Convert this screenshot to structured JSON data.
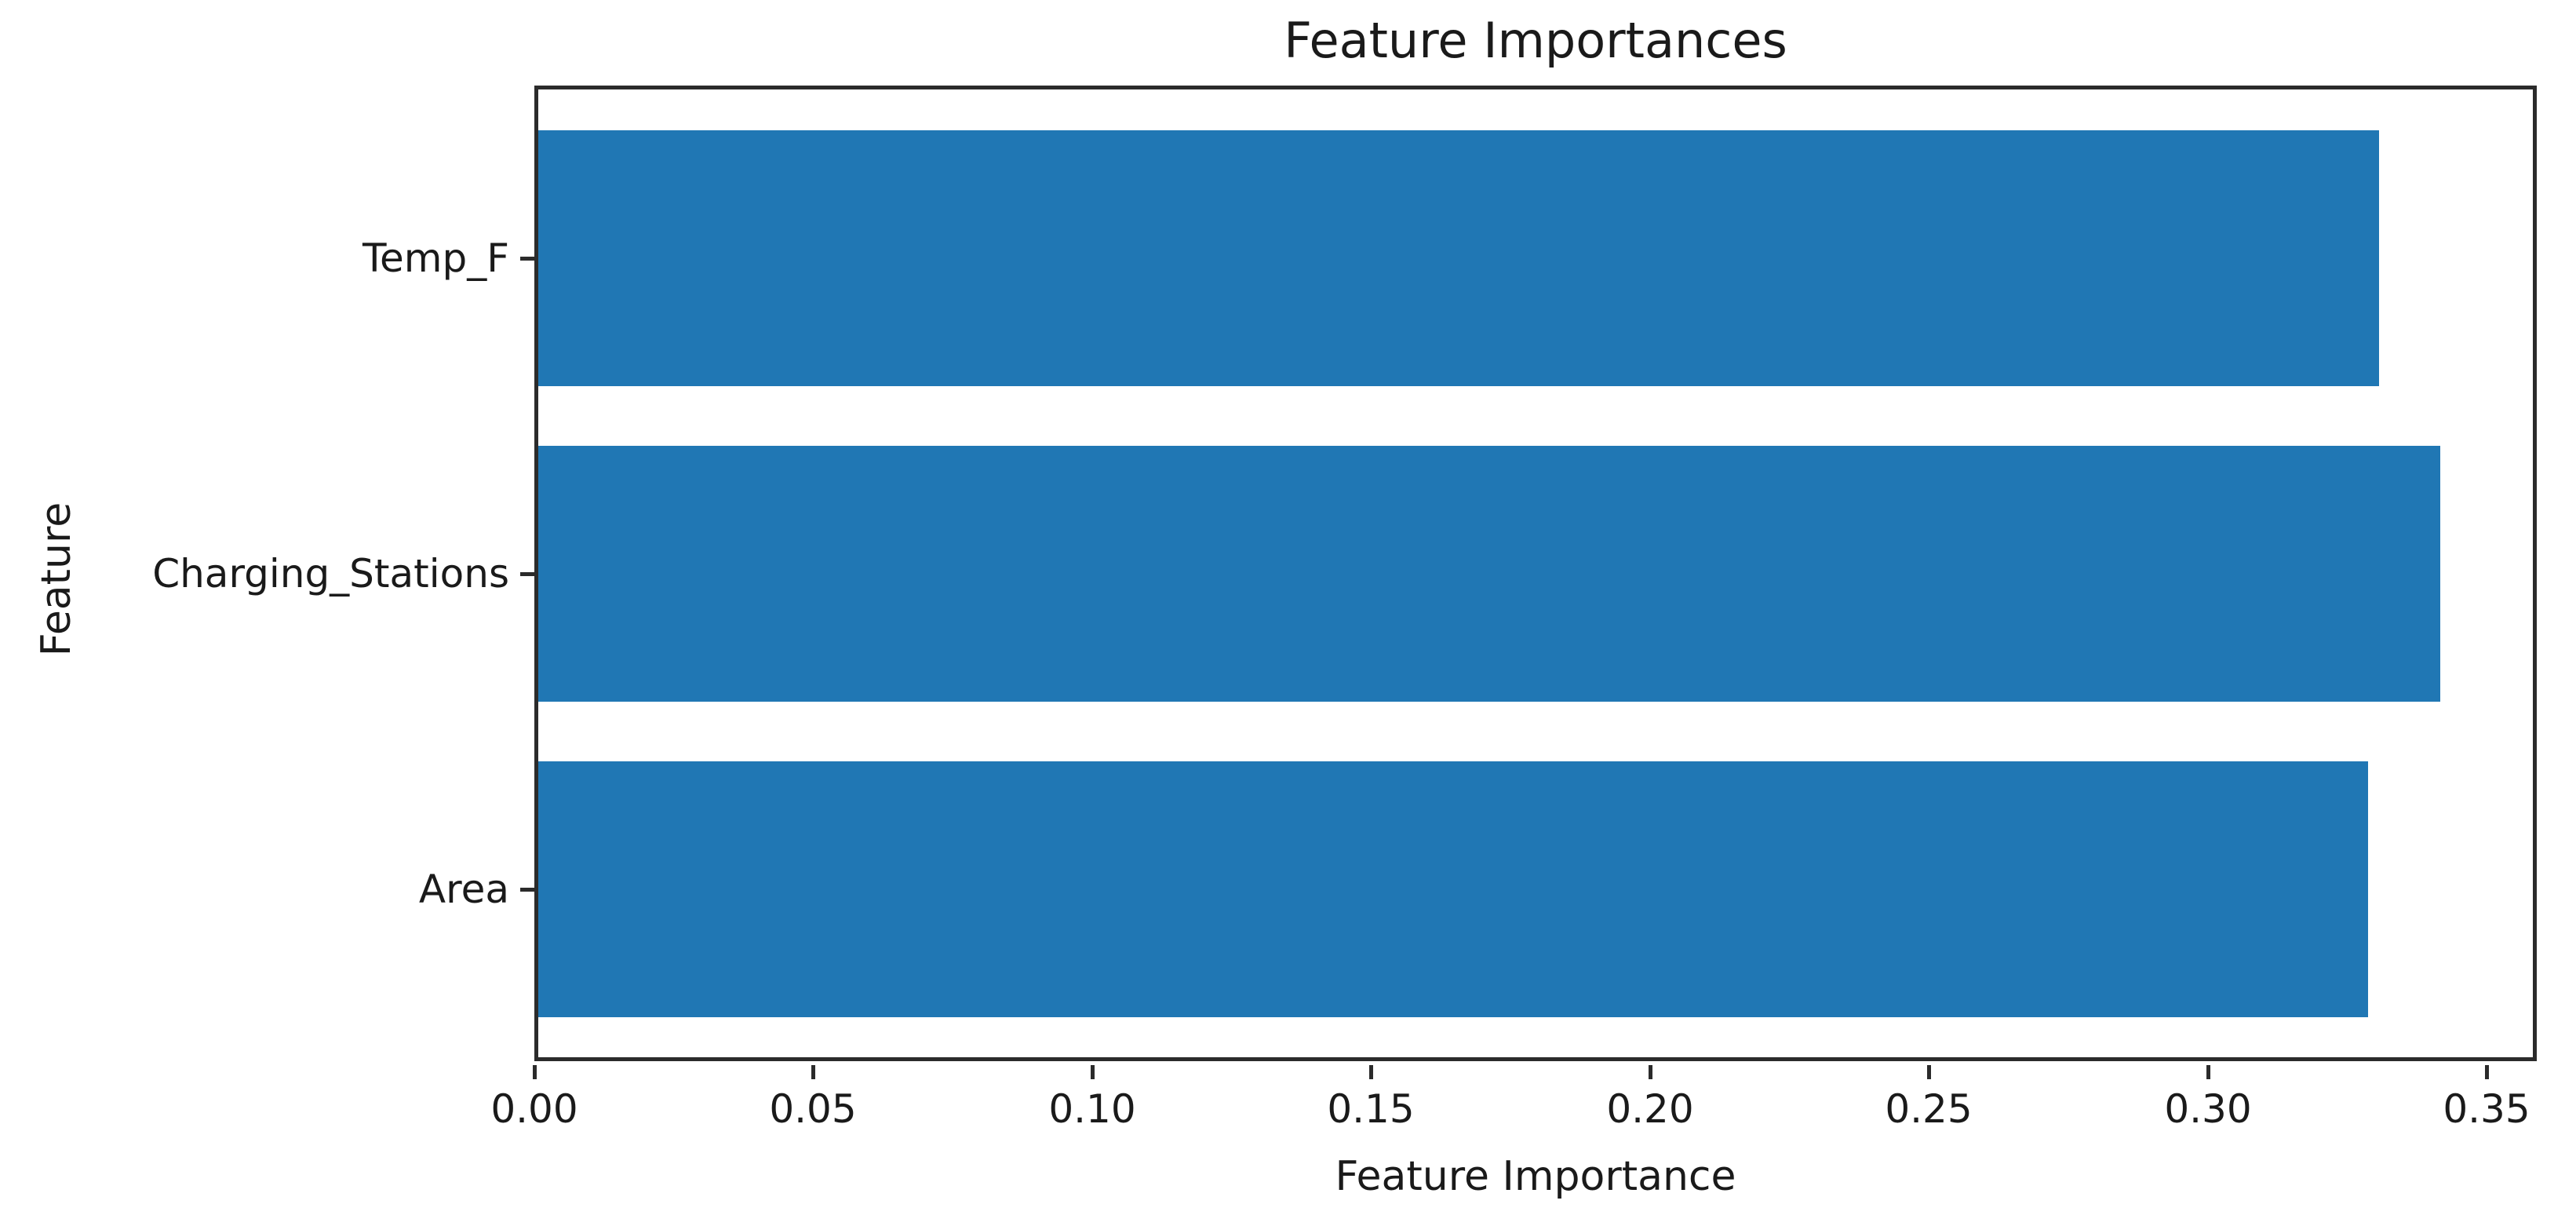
{
  "chart_data": {
    "type": "bar",
    "orientation": "horizontal",
    "title": "Feature Importances",
    "xlabel": "Feature Importance",
    "ylabel": "Feature",
    "categories": [
      "Temp_F",
      "Charging_Stations",
      "Area"
    ],
    "values": [
      0.33,
      0.341,
      0.328
    ],
    "x_tick_labels": [
      "0.00",
      "0.05",
      "0.10",
      "0.15",
      "0.20",
      "0.25",
      "0.30",
      "0.35"
    ],
    "x_tick_values": [
      0.0,
      0.05,
      0.1,
      0.15,
      0.2,
      0.25,
      0.3,
      0.35
    ],
    "xlim": [
      0,
      0.359
    ],
    "grid": false,
    "legend": "none",
    "colors": {
      "bar": "#2077b4",
      "spine": "#2b2b2b",
      "text": "#1a1a1a",
      "background": "#ffffff"
    }
  }
}
